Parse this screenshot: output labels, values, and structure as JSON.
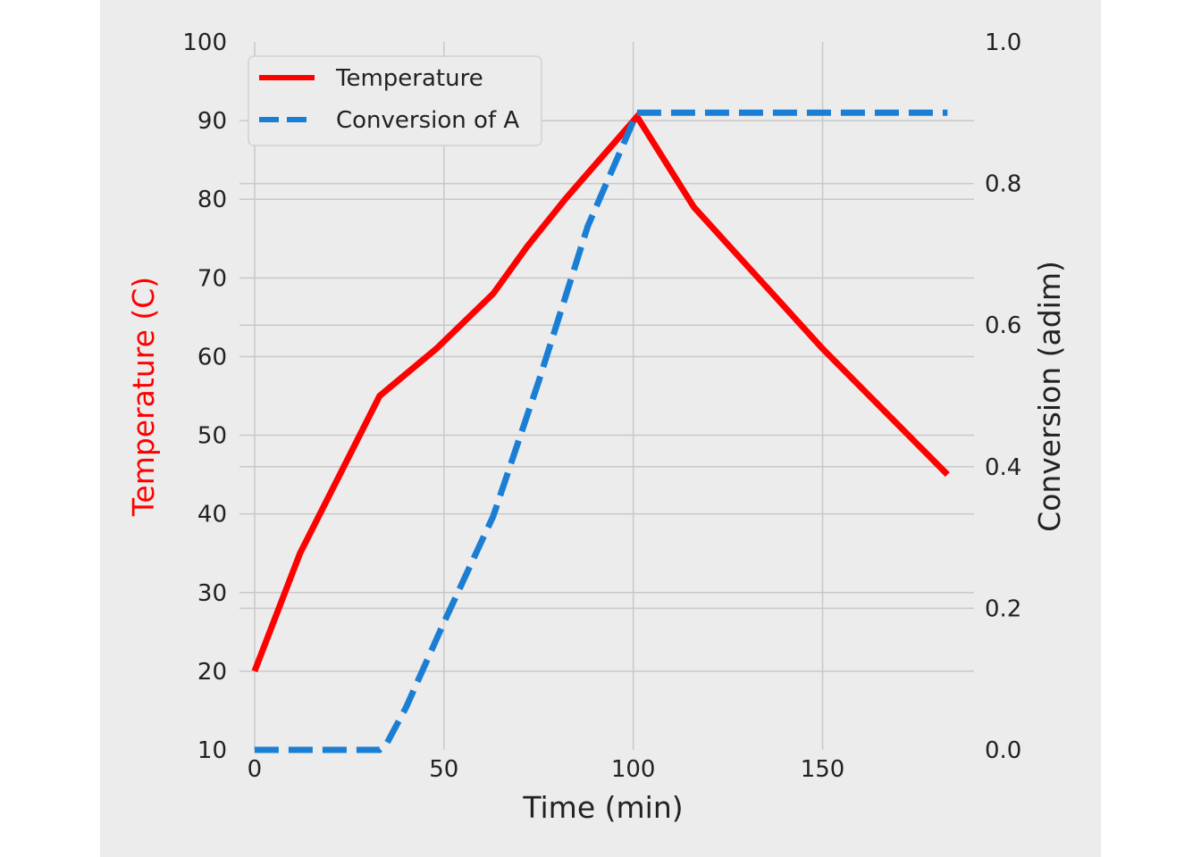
{
  "chart_data": {
    "type": "line",
    "xlabel": "Time (min)",
    "ylabel_left": "Temperature (C)",
    "ylabel_right": "Conversion (adim)",
    "xlim": [
      -4,
      190
    ],
    "ylim_left": [
      10,
      100
    ],
    "ylim_right": [
      0.0,
      1.0
    ],
    "x_ticks": [
      0,
      50,
      100,
      150
    ],
    "x_tick_labels": [
      "0",
      "50",
      "100",
      "150"
    ],
    "y_left_ticks": [
      10,
      20,
      30,
      40,
      50,
      60,
      70,
      80,
      90,
      100
    ],
    "y_left_tick_labels": [
      "10",
      "20",
      "30",
      "40",
      "50",
      "60",
      "70",
      "80",
      "90",
      "100"
    ],
    "y_right_ticks": [
      0.0,
      0.2,
      0.4,
      0.6,
      0.8,
      1.0
    ],
    "y_right_tick_labels": [
      "0.0",
      "0.2",
      "0.4",
      "0.6",
      "0.8",
      "1.0"
    ],
    "grid": true,
    "legend_position": "top-left",
    "series": [
      {
        "name": "Temperature",
        "axis": "left",
        "color": "#ff0000",
        "style": "solid",
        "x": [
          0,
          12,
          33,
          48,
          63,
          72,
          82,
          101,
          116,
          133,
          150,
          183
        ],
        "y": [
          20,
          35,
          55,
          61,
          68,
          74,
          80,
          90.5,
          79,
          70,
          61,
          45
        ]
      },
      {
        "name": "Conversion of A",
        "axis": "right",
        "color": "#1a7fd4",
        "style": "dashed",
        "x": [
          0,
          33,
          35,
          40,
          50,
          63,
          75,
          88,
          101,
          183
        ],
        "y": [
          0.0,
          0.0,
          0.01,
          0.06,
          0.18,
          0.33,
          0.52,
          0.74,
          0.9,
          0.9
        ]
      }
    ]
  }
}
